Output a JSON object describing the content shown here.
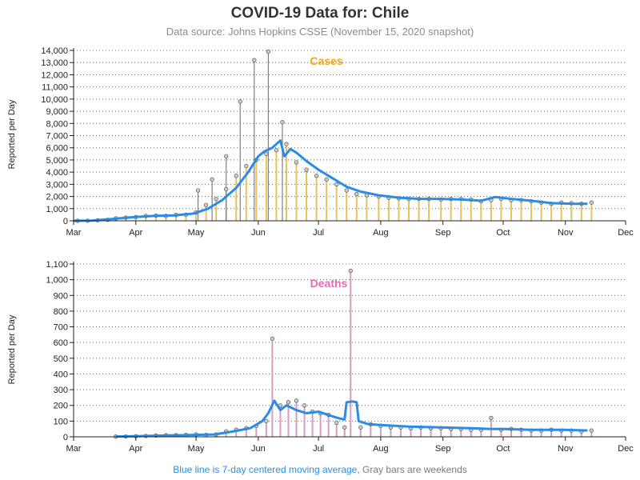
{
  "title": "COVID-19 Data for: Chile",
  "subtitle": "Data source: Johns Hopkins CSSE (November 15, 2020 snapshot)",
  "footnote": {
    "blue_text": "Blue line is 7-day centered moving average,",
    "gray_text": "Gray bars are weekends"
  },
  "colors": {
    "cases": "#f0a81a",
    "cases_bar": "#e8c458",
    "deaths": "#e86ab6",
    "deaths_bar": "#d99ac4",
    "average_line": "#2b8ce6",
    "weekend_bar": "#7f7f7f",
    "marker_fill": "#cccccc",
    "marker_stroke": "#555555",
    "grid": "#666666"
  },
  "chart_data": [
    {
      "type": "bar",
      "panel_label": "Cases",
      "ylabel": "Reported per Day",
      "ylim": [
        0,
        14000
      ],
      "yticks": [
        0,
        1000,
        2000,
        3000,
        4000,
        5000,
        6000,
        7000,
        8000,
        9000,
        10000,
        11000,
        12000,
        13000,
        14000
      ],
      "ytick_labels": [
        "0",
        "1,000",
        "2,000",
        "3,000",
        "4,000",
        "5,000",
        "6,000",
        "7,000",
        "8,000",
        "9,000",
        "10,000",
        "11,000",
        "12,000",
        "13,000",
        "14,000"
      ],
      "xlim": [
        "2020-03-01",
        "2020-12-01"
      ],
      "xtick_labels": [
        "Mar",
        "Apr",
        "May",
        "Jun",
        "Jul",
        "Aug",
        "Sep",
        "Oct",
        "Nov",
        "Dec"
      ],
      "grid": "horizontal dotted",
      "series": [
        {
          "name": "Reported per Day",
          "points": [
            [
              "2020-03-03",
              1
            ],
            [
              "2020-03-08",
              8
            ],
            [
              "2020-03-13",
              40
            ],
            [
              "2020-03-18",
              80
            ],
            [
              "2020-03-22",
              200
            ],
            [
              "2020-03-27",
              260
            ],
            [
              "2020-04-01",
              310
            ],
            [
              "2020-04-06",
              400
            ],
            [
              "2020-04-11",
              430
            ],
            [
              "2020-04-16",
              400
            ],
            [
              "2020-04-21",
              480
            ],
            [
              "2020-04-26",
              500
            ],
            [
              "2020-05-01",
              700
            ],
            [
              "2020-05-06",
              1300
            ],
            [
              "2020-05-11",
              1800
            ],
            [
              "2020-05-16",
              2600
            ],
            [
              "2020-05-21",
              3700
            ],
            [
              "2020-05-26",
              4500
            ],
            [
              "2020-05-31",
              5000
            ],
            [
              "2020-06-05",
              5500
            ],
            [
              "2020-06-10",
              5800
            ],
            [
              "2020-06-15",
              6300
            ],
            [
              "2020-06-20",
              4800
            ],
            [
              "2020-06-25",
              4200
            ],
            [
              "2020-06-30",
              3700
            ],
            [
              "2020-07-05",
              3400
            ],
            [
              "2020-07-10",
              3000
            ],
            [
              "2020-07-15",
              2500
            ],
            [
              "2020-07-20",
              2200
            ],
            [
              "2020-07-25",
              2100
            ],
            [
              "2020-07-31",
              2000
            ],
            [
              "2020-08-05",
              1900
            ],
            [
              "2020-08-10",
              1850
            ],
            [
              "2020-08-15",
              1800
            ],
            [
              "2020-08-20",
              1800
            ],
            [
              "2020-08-25",
              1800
            ],
            [
              "2020-08-31",
              1750
            ],
            [
              "2020-09-05",
              1800
            ],
            [
              "2020-09-10",
              1800
            ],
            [
              "2020-09-15",
              1750
            ],
            [
              "2020-09-20",
              1600
            ],
            [
              "2020-09-25",
              1700
            ],
            [
              "2020-09-30",
              1800
            ],
            [
              "2020-10-05",
              1700
            ],
            [
              "2020-10-10",
              1700
            ],
            [
              "2020-10-15",
              1600
            ],
            [
              "2020-10-20",
              1500
            ],
            [
              "2020-10-25",
              1400
            ],
            [
              "2020-10-30",
              1500
            ],
            [
              "2020-11-04",
              1450
            ],
            [
              "2020-11-09",
              1400
            ],
            [
              "2020-11-14",
              1500
            ]
          ]
        },
        {
          "name": "Weekend spikes",
          "points": [
            [
              "2020-05-23",
              9800
            ],
            [
              "2020-05-30",
              13200
            ],
            [
              "2020-06-06",
              13900
            ],
            [
              "2020-06-13",
              8100
            ],
            [
              "2020-05-16",
              5300
            ],
            [
              "2020-05-09",
              3400
            ],
            [
              "2020-05-02",
              2500
            ]
          ]
        },
        {
          "name": "7-day centered moving average",
          "points": [
            [
              "2020-03-01",
              0
            ],
            [
              "2020-03-10",
              20
            ],
            [
              "2020-03-20",
              150
            ],
            [
              "2020-03-31",
              300
            ],
            [
              "2020-04-10",
              400
            ],
            [
              "2020-04-20",
              450
            ],
            [
              "2020-04-30",
              600
            ],
            [
              "2020-05-07",
              1000
            ],
            [
              "2020-05-14",
              1700
            ],
            [
              "2020-05-21",
              2700
            ],
            [
              "2020-05-27",
              4000
            ],
            [
              "2020-06-01",
              5300
            ],
            [
              "2020-06-04",
              5700
            ],
            [
              "2020-06-08",
              6000
            ],
            [
              "2020-06-12",
              6600
            ],
            [
              "2020-06-14",
              5300
            ],
            [
              "2020-06-17",
              5900
            ],
            [
              "2020-06-20",
              5600
            ],
            [
              "2020-06-25",
              4900
            ],
            [
              "2020-07-01",
              4200
            ],
            [
              "2020-07-08",
              3500
            ],
            [
              "2020-07-15",
              2800
            ],
            [
              "2020-07-22",
              2400
            ],
            [
              "2020-07-31",
              2100
            ],
            [
              "2020-08-10",
              1900
            ],
            [
              "2020-08-20",
              1800
            ],
            [
              "2020-08-31",
              1800
            ],
            [
              "2020-09-10",
              1750
            ],
            [
              "2020-09-20",
              1650
            ],
            [
              "2020-09-27",
              1950
            ],
            [
              "2020-10-05",
              1800
            ],
            [
              "2020-10-15",
              1650
            ],
            [
              "2020-10-25",
              1450
            ],
            [
              "2020-11-05",
              1400
            ],
            [
              "2020-11-12",
              1400
            ]
          ]
        }
      ]
    },
    {
      "type": "bar",
      "panel_label": "Deaths",
      "ylabel": "Reported per Day",
      "ylim": [
        0,
        1100
      ],
      "yticks": [
        0,
        100,
        200,
        300,
        400,
        500,
        600,
        700,
        800,
        900,
        1000,
        1100
      ],
      "ytick_labels": [
        "0",
        "100",
        "200",
        "300",
        "400",
        "500",
        "600",
        "700",
        "800",
        "900",
        "1,000",
        "1,100"
      ],
      "xlim": [
        "2020-03-01",
        "2020-12-01"
      ],
      "xtick_labels": [
        "Mar",
        "Apr",
        "May",
        "Jun",
        "Jul",
        "Aug",
        "Sep",
        "Oct",
        "Nov",
        "Dec"
      ],
      "grid": "horizontal dotted",
      "series": [
        {
          "name": "Reported per Day",
          "points": [
            [
              "2020-03-22",
              1
            ],
            [
              "2020-03-27",
              2
            ],
            [
              "2020-04-01",
              4
            ],
            [
              "2020-04-06",
              5
            ],
            [
              "2020-04-11",
              8
            ],
            [
              "2020-04-16",
              10
            ],
            [
              "2020-04-21",
              10
            ],
            [
              "2020-04-26",
              12
            ],
            [
              "2020-05-01",
              15
            ],
            [
              "2020-05-06",
              12
            ],
            [
              "2020-05-11",
              15
            ],
            [
              "2020-05-16",
              35
            ],
            [
              "2020-05-21",
              45
            ],
            [
              "2020-05-26",
              55
            ],
            [
              "2020-05-31",
              70
            ],
            [
              "2020-06-05",
              100
            ],
            [
              "2020-06-08",
              625
            ],
            [
              "2020-06-12",
              200
            ],
            [
              "2020-06-16",
              220
            ],
            [
              "2020-06-20",
              230
            ],
            [
              "2020-06-24",
              200
            ],
            [
              "2020-06-28",
              160
            ],
            [
              "2020-07-02",
              150
            ],
            [
              "2020-07-06",
              140
            ],
            [
              "2020-07-10",
              90
            ],
            [
              "2020-07-14",
              60
            ],
            [
              "2020-07-17",
              1057
            ],
            [
              "2020-07-22",
              60
            ],
            [
              "2020-07-27",
              80
            ],
            [
              "2020-08-01",
              70
            ],
            [
              "2020-08-06",
              60
            ],
            [
              "2020-08-11",
              60
            ],
            [
              "2020-08-16",
              55
            ],
            [
              "2020-08-21",
              60
            ],
            [
              "2020-08-26",
              55
            ],
            [
              "2020-08-31",
              55
            ],
            [
              "2020-09-05",
              50
            ],
            [
              "2020-09-10",
              50
            ],
            [
              "2020-09-15",
              45
            ],
            [
              "2020-09-20",
              45
            ],
            [
              "2020-09-25",
              120
            ],
            [
              "2020-09-30",
              45
            ],
            [
              "2020-10-05",
              50
            ],
            [
              "2020-10-10",
              45
            ],
            [
              "2020-10-15",
              40
            ],
            [
              "2020-10-20",
              40
            ],
            [
              "2020-10-25",
              45
            ],
            [
              "2020-10-30",
              40
            ],
            [
              "2020-11-04",
              40
            ],
            [
              "2020-11-09",
              35
            ],
            [
              "2020-11-14",
              40
            ]
          ]
        },
        {
          "name": "7-day centered moving average",
          "points": [
            [
              "2020-03-22",
              2
            ],
            [
              "2020-04-01",
              4
            ],
            [
              "2020-04-15",
              8
            ],
            [
              "2020-05-01",
              12
            ],
            [
              "2020-05-10",
              15
            ],
            [
              "2020-05-20",
              35
            ],
            [
              "2020-05-28",
              55
            ],
            [
              "2020-06-03",
              100
            ],
            [
              "2020-06-06",
              150
            ],
            [
              "2020-06-09",
              230
            ],
            [
              "2020-06-12",
              170
            ],
            [
              "2020-06-15",
              200
            ],
            [
              "2020-06-20",
              170
            ],
            [
              "2020-06-25",
              150
            ],
            [
              "2020-07-01",
              160
            ],
            [
              "2020-07-08",
              130
            ],
            [
              "2020-07-12",
              115
            ],
            [
              "2020-07-14",
              110
            ],
            [
              "2020-07-15",
              220
            ],
            [
              "2020-07-18",
              225
            ],
            [
              "2020-07-20",
              220
            ],
            [
              "2020-07-21",
              100
            ],
            [
              "2020-07-26",
              80
            ],
            [
              "2020-08-01",
              75
            ],
            [
              "2020-08-15",
              65
            ],
            [
              "2020-08-31",
              60
            ],
            [
              "2020-09-15",
              55
            ],
            [
              "2020-09-25",
              50
            ],
            [
              "2020-10-01",
              50
            ],
            [
              "2020-10-15",
              45
            ],
            [
              "2020-10-31",
              45
            ],
            [
              "2020-11-12",
              40
            ]
          ]
        }
      ]
    }
  ]
}
